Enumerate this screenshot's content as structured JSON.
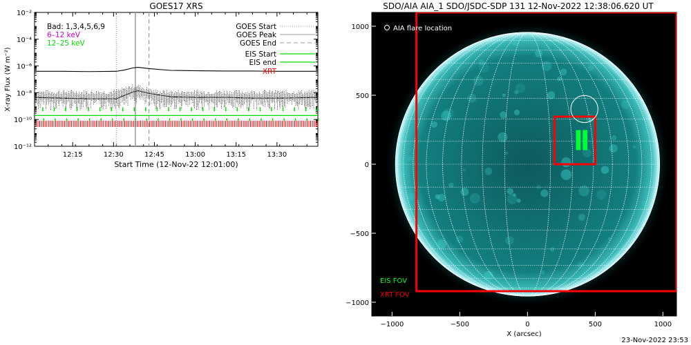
{
  "chart_data": [
    {
      "type": "line",
      "title": "GOES17 XRS",
      "xlabel": "Start Time (12-Nov-22 12:01:00)",
      "ylabel": "X-ray Flux (W m⁻²)",
      "y_log_scale": true,
      "ylim_exponent": [
        -12,
        -2
      ],
      "y_ticks": [
        "10⁻²",
        "10⁻⁴",
        "10⁻⁶",
        "10⁻⁸",
        "10⁻¹⁰",
        "10⁻¹²"
      ],
      "y_tick_exponents": [
        -2,
        -4,
        -6,
        -8,
        -10,
        -12
      ],
      "x_ticks": [
        "12:15",
        "12:30",
        "12:45",
        "13:00",
        "13:15",
        "13:30"
      ],
      "x_tick_minutes": [
        14,
        29,
        44,
        59,
        74,
        89
      ],
      "xlim_minutes": [
        0,
        104
      ],
      "series": [
        {
          "name": "Bad: 1,3,4,5,6,9",
          "color": "#000000"
        },
        {
          "name": "6–12 keV",
          "color": "#cc00cc",
          "minutes": [
            0,
            10,
            20,
            30,
            33,
            36,
            38,
            42,
            50,
            60,
            70,
            80,
            90,
            104
          ],
          "log_flux": [
            -6.4,
            -6.4,
            -6.42,
            -6.4,
            -6.3,
            -6.15,
            -6.1,
            -6.2,
            -6.33,
            -6.36,
            -6.38,
            -6.38,
            -6.4,
            -6.4
          ]
        },
        {
          "name": "12–25 keV",
          "color": "#00dd00",
          "minutes": [
            0,
            10,
            20,
            30,
            33,
            36,
            38,
            42,
            50,
            60,
            70,
            80,
            90,
            104
          ],
          "log_flux": [
            -8.35,
            -8.4,
            -8.45,
            -8.45,
            -8.2,
            -7.95,
            -7.85,
            -8.05,
            -8.3,
            -8.35,
            -8.35,
            -8.4,
            -8.4,
            -8.35
          ]
        }
      ],
      "event_lines": [
        {
          "label": "GOES Start",
          "style": "dotted",
          "minute": 30
        },
        {
          "label": "GOES Peak",
          "style": "solid",
          "minute": 37
        },
        {
          "label": "GOES End",
          "style": "dashed",
          "minute": 42
        }
      ],
      "eis": {
        "start_label": "EIS Start",
        "end_label": "EIS end",
        "color": "#00dd00",
        "log_flux": -9.7
      },
      "xrt": {
        "label": "XRT",
        "color": "#ff0000",
        "log_flux": -10.3
      },
      "legend_placement": "top-left and top-right"
    },
    {
      "type": "image",
      "title": "SDO/AIA AIA_1 SDO/JSDC-SDP 131 12-Nov-2022 12:38:06.620 UT",
      "xlabel": "X (arcsec)",
      "ylabel": "",
      "xlim": [
        -1150,
        1100
      ],
      "ylim": [
        -1100,
        1100
      ],
      "x_ticks": [
        -1000,
        -500,
        0,
        500,
        1000
      ],
      "x_tick_labels": [
        "−1000",
        "−500",
        "0",
        "500",
        "1000"
      ],
      "y_ticks": [
        -1000,
        -500,
        0,
        500,
        1000
      ],
      "y_tick_labels": [
        "−1000",
        "−500",
        "0",
        "500",
        "1000"
      ],
      "solar_radius_arcsec": 975,
      "flare_location_label": "AIA flare location",
      "flare_location": {
        "x": 420,
        "y": 400,
        "radius": 100
      },
      "xrt_fov_label": "XRT FOV",
      "xrt_fov_large": {
        "x1": -820,
        "y1": -920,
        "x2": 1100,
        "y2": 1100
      },
      "xrt_fov_small": {
        "x1": 200,
        "y1": 0,
        "x2": 500,
        "y2": 345
      },
      "eis_fov_label": "EIS FOV",
      "eis_fov": [
        {
          "x1": 360,
          "y1": 105,
          "x2": 390,
          "y2": 245
        },
        {
          "x1": 410,
          "y1": 105,
          "x2": 440,
          "y2": 245
        }
      ],
      "colors": {
        "disk": "#0e6b6b",
        "limb": "#aaf4ff",
        "background": "#000000",
        "xrt": "#ff0000",
        "eis": "#00ff33",
        "grid": "#ffffff"
      }
    }
  ],
  "footer": {
    "timestamp": "23-Nov-2022 23:53"
  }
}
